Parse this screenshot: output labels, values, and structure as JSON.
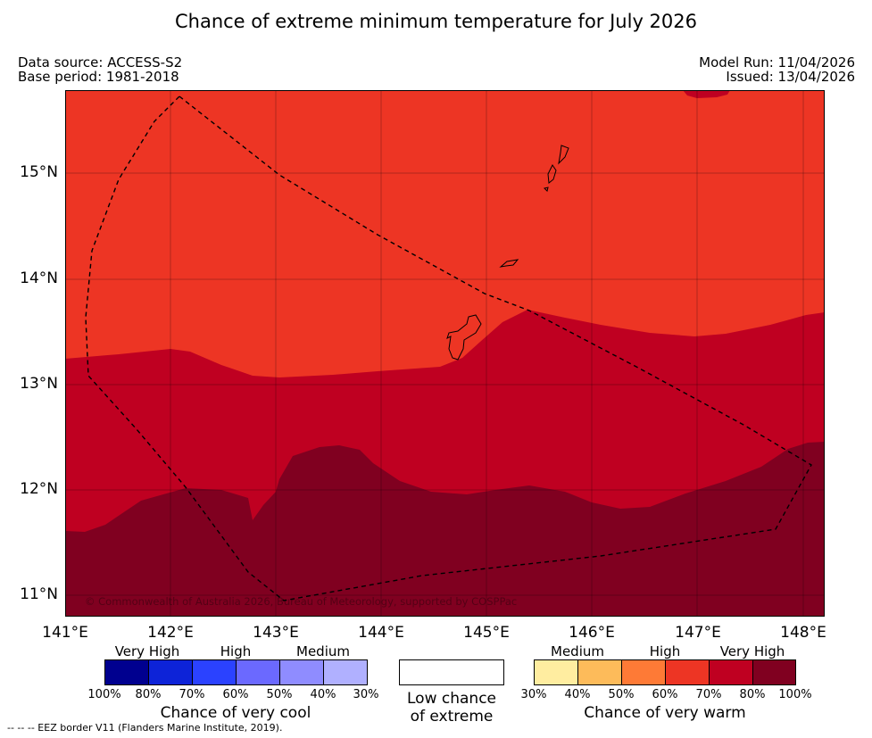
{
  "title": "Chance of extreme minimum temperature for July 2026",
  "meta": {
    "data_source": "Data source: ACCESS-S2",
    "base_period": "Base period: 1981-2018",
    "model_run": "Model Run: 11/04/2026",
    "issued": "Issued: 13/04/2026"
  },
  "map": {
    "lat_labels": [
      "15°N",
      "14°N",
      "13°N",
      "12°N",
      "11°N"
    ],
    "lon_labels": [
      "141°E",
      "142°E",
      "143°E",
      "144°E",
      "145°E",
      "146°E",
      "147°E",
      "148°E"
    ],
    "lon_range": [
      141,
      148.2
    ],
    "lat_range": [
      10.8,
      15.75
    ],
    "copyright": "© Commonwealth of Australia 2026, Bureau of Meteorology, supported by COSPPac"
  },
  "legend": {
    "cool": {
      "title": "Chance of very cool",
      "levels": [
        "Very High",
        "High",
        "Medium"
      ],
      "ticks": [
        "100%",
        "80%",
        "70%",
        "60%",
        "50%",
        "40%",
        "30%"
      ],
      "colors": [
        "#00008f",
        "#0d23d8",
        "#2b42ff",
        "#6b69ff",
        "#8f8cff",
        "#b0b0ff"
      ]
    },
    "neutral": {
      "line1": "Low chance",
      "line2": "of extreme",
      "color": "#ffffff"
    },
    "warm": {
      "title": "Chance of very warm",
      "levels": [
        "Medium",
        "High",
        "Very High"
      ],
      "ticks": [
        "30%",
        "40%",
        "50%",
        "60%",
        "70%",
        "80%",
        "100%"
      ],
      "colors": [
        "#ffeda0",
        "#fdbb5a",
        "#fe7a36",
        "#ed3524",
        "#bf0021",
        "#800020"
      ]
    }
  },
  "eez_note": "--  --  -- EEZ border V11 (Flanders Marine Institute, 2019)."
}
